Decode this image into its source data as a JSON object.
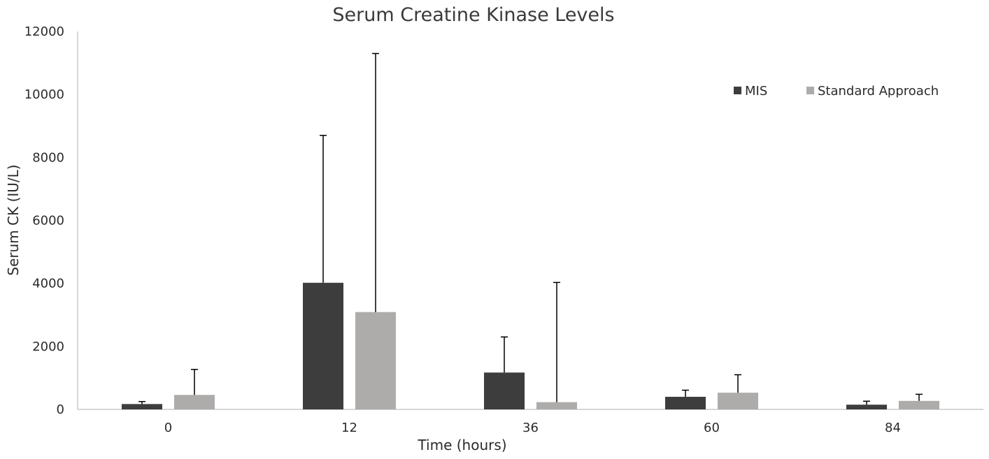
{
  "chart_data": {
    "type": "bar",
    "title": "Serum Creatine Kinase Levels",
    "xlabel": "Time (hours)",
    "ylabel": "Serum CK (IU/L)",
    "categories": [
      "0",
      "12",
      "36",
      "60",
      "84"
    ],
    "ylim": [
      0,
      12000
    ],
    "yticks": [
      "0",
      "2000",
      "4000",
      "6000",
      "8000",
      "10000",
      "12000"
    ],
    "grid": false,
    "legend_position": "top-right",
    "series": [
      {
        "name": "MIS",
        "color": "#3d3d3d",
        "values": [
          170,
          4020,
          1170,
          400,
          150
        ],
        "error_plus": [
          80,
          4680,
          1130,
          210,
          110
        ]
      },
      {
        "name": "Standard Approach",
        "color": "#aeabab",
        "values": [
          460,
          3090,
          230,
          530,
          270
        ],
        "error_plus": [
          810,
          8210,
          3800,
          570,
          210
        ]
      }
    ]
  }
}
